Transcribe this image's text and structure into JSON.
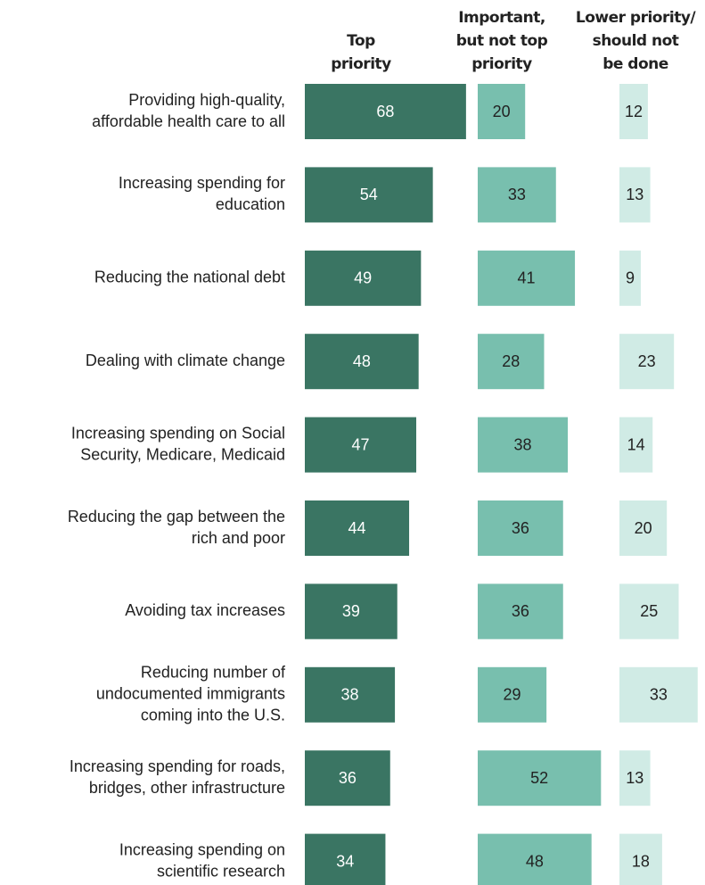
{
  "chart_data": {
    "type": "bar",
    "orientation": "horizontal",
    "categories": [
      [
        "Providing high-quality,",
        "affordable health care to all"
      ],
      [
        "Increasing spending for",
        "education"
      ],
      [
        "Reducing the national debt"
      ],
      [
        "Dealing with climate change"
      ],
      [
        "Increasing spending on Social",
        "Security, Medicare, Medicaid"
      ],
      [
        "Reducing the gap between the",
        "rich and poor"
      ],
      [
        "Avoiding tax increases"
      ],
      [
        "Reducing number of",
        "undocumented immigrants",
        "coming into the U.S."
      ],
      [
        "Increasing spending for roads,",
        "bridges, other infrastructure"
      ],
      [
        "Increasing spending on",
        "scientific research"
      ]
    ],
    "series": [
      {
        "name": [
          "Top",
          "priority"
        ],
        "color": "#3a7563",
        "label_color": "#ffffff",
        "values": [
          68,
          54,
          49,
          48,
          47,
          44,
          39,
          38,
          36,
          34
        ]
      },
      {
        "name": [
          "Important,",
          "but not top",
          "priority"
        ],
        "color": "#78bfae",
        "label_color": "#222222",
        "values": [
          20,
          33,
          41,
          28,
          38,
          36,
          36,
          29,
          52,
          48
        ]
      },
      {
        "name": [
          "Lower priority/",
          "should not",
          "be done"
        ],
        "color": "#d0ebe5",
        "label_color": "#222222",
        "values": [
          12,
          13,
          9,
          23,
          14,
          20,
          25,
          33,
          13,
          18
        ]
      }
    ]
  }
}
